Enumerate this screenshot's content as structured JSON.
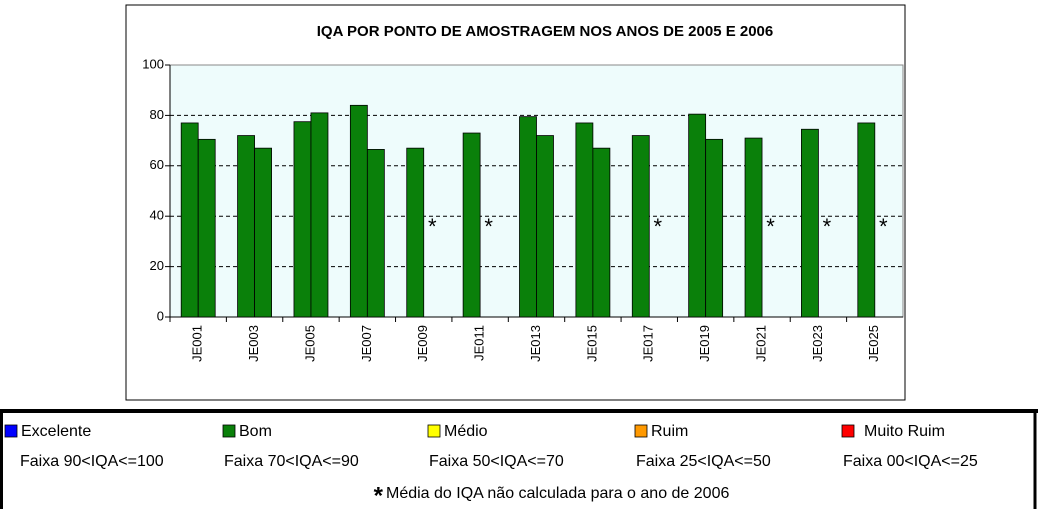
{
  "chart_data": {
    "type": "bar",
    "title": "IQA POR PONTO DE AMOSTRAGEM NOS ANOS DE 2005 E 2006",
    "categories": [
      "JE001",
      "JE003",
      "JE005",
      "JE007",
      "JE009",
      "JE011",
      "JE013",
      "JE015",
      "JE017",
      "JE019",
      "JE021",
      "JE023",
      "JE025"
    ],
    "series": [
      {
        "color": "#0a800a",
        "values": [
          77,
          72,
          77.5,
          84,
          67,
          73,
          79.5,
          77,
          72,
          80.5,
          71,
          74.5,
          77
        ]
      },
      {
        "color": "#0a800a",
        "values": [
          70.5,
          67,
          81,
          66.5,
          null,
          null,
          72,
          67,
          null,
          70.5,
          null,
          null,
          null
        ]
      }
    ],
    "missing_marker": "*",
    "ylim": [
      0,
      100
    ],
    "yticks": [
      0,
      20,
      40,
      60,
      80,
      100
    ],
    "grid": true
  },
  "legend": {
    "items": [
      {
        "label": "Excelente",
        "range": "Faixa 90<IQA<=100",
        "color": "#0000ff"
      },
      {
        "label": "Bom",
        "range": "Faixa 70<IQA<=90",
        "color": "#0a800a"
      },
      {
        "label": "Médio",
        "range": "Faixa 50<IQA<=70",
        "color": "#ffff00"
      },
      {
        "label": "Ruim",
        "range": "Faixa 25<IQA<=50",
        "color": "#ff9900"
      },
      {
        "label": "Muito Ruim",
        "range": "Faixa 00<IQA<=25",
        "color": "#ff0000"
      }
    ],
    "footnote_marker": "*",
    "footnote": "Média do IQA não calculada para o ano de 2006"
  }
}
